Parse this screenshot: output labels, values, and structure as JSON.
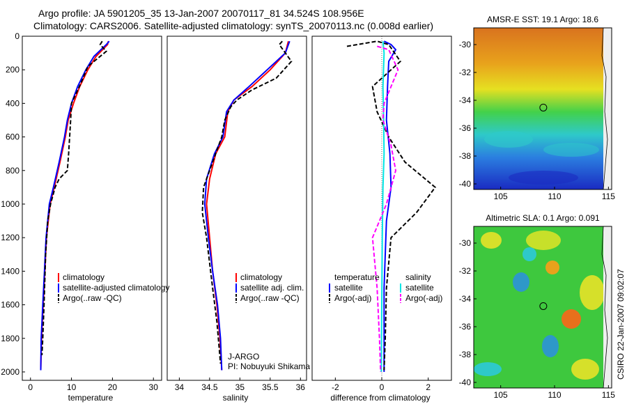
{
  "title": {
    "line1": "Argo profile: JA 5901205_35 13-Jan-2007 20070117_81 34.524S 108.956E",
    "line2": "Climatology: CARS2006. Satellite-adjusted climatology: synTS_20070113.nc (0.008d earlier)"
  },
  "colors": {
    "climatology": "#ff0000",
    "satellite": "#0000ff",
    "argo": "#000000",
    "salinity_sat": "#00e5e5",
    "salinity_argo": "#ff00ff"
  },
  "chart_data": [
    {
      "type": "line",
      "panel": "temperature",
      "xlabel": "temperature",
      "ylabel": "",
      "xlim": [
        -2,
        32
      ],
      "ylim": [
        2050,
        0
      ],
      "x_ticks": [
        "0",
        "10",
        "20",
        "30"
      ],
      "y_ticks": [
        "0",
        "200",
        "400",
        "600",
        "800",
        "1000",
        "1200",
        "1400",
        "1600",
        "1800",
        "2000"
      ],
      "legend": [
        "climatology",
        "satellite-adjusted climatology",
        "Argo(..raw -QC)"
      ],
      "series": [
        {
          "name": "climatology",
          "points": [
            [
              19,
              30
            ],
            [
              18.8,
              50
            ],
            [
              16,
              120
            ],
            [
              14,
              200
            ],
            [
              12,
              300
            ],
            [
              10.5,
              400
            ],
            [
              9.2,
              500
            ],
            [
              8.5,
              600
            ],
            [
              7.2,
              750
            ],
            [
              5.8,
              900
            ],
            [
              4.8,
              1000
            ],
            [
              3.9,
              1200
            ],
            [
              3.5,
              1400
            ],
            [
              3.1,
              1600
            ],
            [
              2.7,
              1800
            ],
            [
              2.5,
              1990
            ]
          ]
        },
        {
          "name": "satellite-adjusted climatology",
          "points": [
            [
              19.2,
              30
            ],
            [
              18.5,
              50
            ],
            [
              15.5,
              120
            ],
            [
              13.5,
              200
            ],
            [
              11.5,
              300
            ],
            [
              10,
              400
            ],
            [
              9,
              500
            ],
            [
              8.3,
              600
            ],
            [
              7,
              750
            ],
            [
              5.6,
              900
            ],
            [
              4.6,
              1000
            ],
            [
              3.8,
              1200
            ],
            [
              3.4,
              1400
            ],
            [
              3,
              1600
            ],
            [
              2.6,
              1800
            ],
            [
              2.5,
              1990
            ]
          ]
        },
        {
          "name": "Argo(..raw -QC)",
          "points": [
            [
              17.5,
              30
            ],
            [
              17,
              50
            ],
            [
              18.5,
              90
            ],
            [
              14,
              180
            ],
            [
              12.3,
              280
            ],
            [
              10,
              400
            ],
            [
              9.8,
              500
            ],
            [
              9.3,
              700
            ],
            [
              9,
              800
            ],
            [
              7,
              850
            ],
            [
              6,
              900
            ],
            [
              4.9,
              1000
            ],
            [
              4.2,
              1100
            ],
            [
              3.7,
              1300
            ],
            [
              3.3,
              1600
            ],
            [
              3,
              1800
            ],
            [
              2.8,
              1900
            ]
          ]
        }
      ]
    },
    {
      "type": "line",
      "panel": "salinity",
      "xlabel": "salinity",
      "xlim": [
        33.8,
        36.1
      ],
      "ylim": [
        2050,
        0
      ],
      "x_ticks": [
        "34",
        "34.5",
        "35",
        "35.5",
        "36"
      ],
      "legend": [
        "climatology",
        "satellite adj. clim.",
        "Argo(..raw -QC)"
      ],
      "annotation": [
        "J-ARGO",
        "PI: Nobuyuki Shikama"
      ],
      "series": [
        {
          "name": "climatology",
          "points": [
            [
              35.8,
              30
            ],
            [
              35.75,
              100
            ],
            [
              35.5,
              200
            ],
            [
              35.2,
              300
            ],
            [
              34.9,
              380
            ],
            [
              34.8,
              450
            ],
            [
              34.75,
              600
            ],
            [
              34.6,
              700
            ],
            [
              34.5,
              850
            ],
            [
              34.45,
              1000
            ],
            [
              34.5,
              1200
            ],
            [
              34.55,
              1400
            ],
            [
              34.62,
              1600
            ],
            [
              34.67,
              1800
            ],
            [
              34.7,
              1990
            ]
          ]
        },
        {
          "name": "satellite adj. clim.",
          "points": [
            [
              35.82,
              30
            ],
            [
              35.75,
              100
            ],
            [
              35.45,
              200
            ],
            [
              35.15,
              300
            ],
            [
              34.9,
              380
            ],
            [
              34.78,
              450
            ],
            [
              34.72,
              600
            ],
            [
              34.58,
              700
            ],
            [
              34.45,
              850
            ],
            [
              34.42,
              1000
            ],
            [
              34.48,
              1200
            ],
            [
              34.55,
              1400
            ],
            [
              34.63,
              1600
            ],
            [
              34.68,
              1800
            ],
            [
              34.7,
              1990
            ]
          ]
        },
        {
          "name": "Argo(..raw -QC)",
          "points": [
            [
              35.7,
              30
            ],
            [
              35.65,
              50
            ],
            [
              35.85,
              150
            ],
            [
              35.6,
              250
            ],
            [
              35.2,
              320
            ],
            [
              34.95,
              380
            ],
            [
              34.85,
              420
            ],
            [
              34.75,
              500
            ],
            [
              34.7,
              600
            ],
            [
              34.55,
              750
            ],
            [
              34.4,
              900
            ],
            [
              34.38,
              1050
            ],
            [
              34.45,
              1200
            ],
            [
              34.55,
              1500
            ],
            [
              34.62,
              1700
            ],
            [
              34.68,
              1950
            ]
          ]
        }
      ]
    },
    {
      "type": "line",
      "panel": "difference",
      "xlabel": "difference from climatology",
      "xlim": [
        -3,
        3
      ],
      "ylim": [
        2050,
        0
      ],
      "x_ticks": [
        "-2",
        "0",
        "2"
      ],
      "legend_left": [
        "temperature",
        "satellite",
        "Argo(-adj)"
      ],
      "legend_right": [
        "salinity",
        "satellite",
        "Argo(-adj)"
      ],
      "series": [
        {
          "name": "temperature satellite",
          "points": [
            [
              0.1,
              30
            ],
            [
              0.4,
              50
            ],
            [
              0.6,
              80
            ],
            [
              0.3,
              150
            ],
            [
              0.25,
              300
            ],
            [
              0.2,
              500
            ],
            [
              0.35,
              700
            ],
            [
              0.4,
              900
            ],
            [
              0.2,
              1100
            ],
            [
              0.1,
              1500
            ],
            [
              0.1,
              1900
            ],
            [
              0.1,
              2000
            ]
          ]
        },
        {
          "name": "temperature Argo(-adj)",
          "points": [
            [
              -1.5,
              60
            ],
            [
              -0.2,
              30
            ],
            [
              0.3,
              50
            ],
            [
              0.8,
              150
            ],
            [
              -0.4,
              300
            ],
            [
              -0.2,
              450
            ],
            [
              0.3,
              600
            ],
            [
              1.0,
              750
            ],
            [
              2.3,
              900
            ],
            [
              1.5,
              1050
            ],
            [
              0.4,
              1200
            ],
            [
              0.2,
              1500
            ],
            [
              0.15,
              1800
            ],
            [
              0.1,
              1990
            ]
          ]
        },
        {
          "name": "salinity satellite",
          "points": [
            [
              0.05,
              30
            ],
            [
              0.1,
              100
            ],
            [
              0.05,
              300
            ],
            [
              0.08,
              500
            ],
            [
              0.1,
              700
            ],
            [
              0.05,
              900
            ],
            [
              0.02,
              1200
            ],
            [
              0.0,
              1600
            ],
            [
              -0.02,
              2000
            ]
          ]
        },
        {
          "name": "salinity Argo(-adj)",
          "points": [
            [
              -0.2,
              60
            ],
            [
              0.3,
              80
            ],
            [
              0.7,
              200
            ],
            [
              0.4,
              300
            ],
            [
              0.1,
              400
            ],
            [
              0.05,
              500
            ],
            [
              0.4,
              650
            ],
            [
              0.6,
              800
            ],
            [
              0.2,
              1000
            ],
            [
              -0.4,
              1200
            ],
            [
              -0.2,
              1500
            ],
            [
              -0.1,
              1800
            ],
            [
              -0.05,
              2000
            ]
          ]
        }
      ]
    },
    {
      "type": "heatmap",
      "panel": "sst_map",
      "title": "AMSR-E SST: 19.1 Argo: 18.6",
      "x_ticks": [
        "105",
        "110",
        "115"
      ],
      "y_ticks": [
        "-30",
        "-32",
        "-34",
        "-36",
        "-38",
        "-40"
      ],
      "xlim": [
        102.5,
        115.3
      ],
      "ylim": [
        -40.4,
        -28.8
      ],
      "float_position": [
        108.956,
        -34.524
      ]
    },
    {
      "type": "heatmap",
      "panel": "sla_map",
      "title": "Altimetric SLA: 0.1 Argo: 0.091",
      "x_ticks": [
        "105",
        "110",
        "115"
      ],
      "y_ticks": [
        "-30",
        "-32",
        "-34",
        "-36",
        "-38",
        "-40"
      ],
      "xlim": [
        102.5,
        115.3
      ],
      "ylim": [
        -40.4,
        -28.8
      ],
      "float_position": [
        108.956,
        -34.524
      ]
    }
  ],
  "footer": {
    "credit": "CSIRO 22-Jan-2007 09:02:07"
  }
}
